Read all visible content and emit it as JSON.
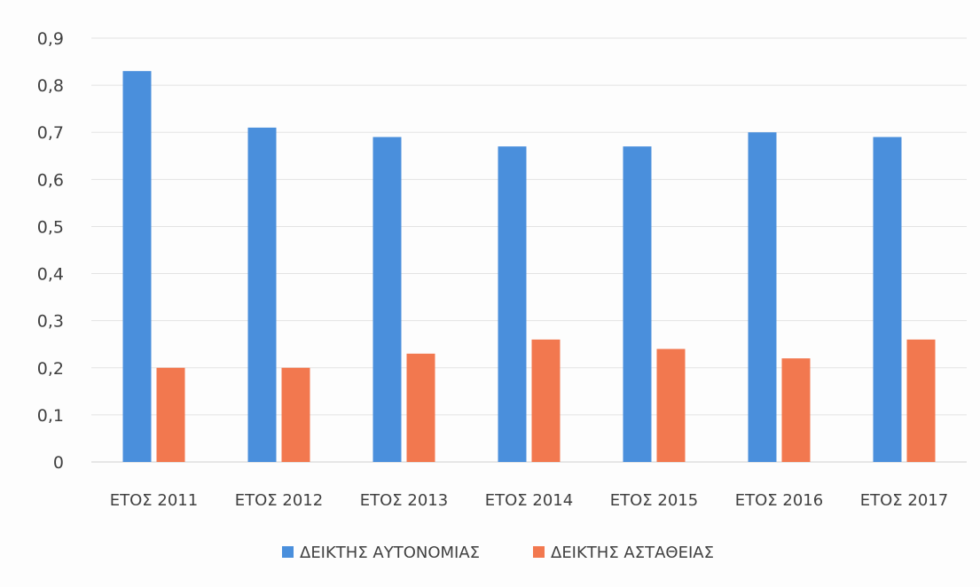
{
  "chart_data": {
    "type": "bar",
    "categories": [
      "ΕΤΟΣ 2011",
      "ΕΤΟΣ 2012",
      "ΕΤΟΣ 2013",
      "ΕΤΟΣ 2014",
      "ΕΤΟΣ 2015",
      "ΕΤΟΣ 2016",
      "ΕΤΟΣ 2017"
    ],
    "series": [
      {
        "name": "ΔΕΙΚΤΗΣ ΑΥΤΟΝΟΜΙΑΣ",
        "color": "#4a8fdc",
        "values": [
          0.83,
          0.71,
          0.69,
          0.67,
          0.67,
          0.7,
          0.69
        ]
      },
      {
        "name": "ΔΕΙΚΤΗΣ ΑΣΤΑΘΕΙΑΣ",
        "color": "#f2784f",
        "values": [
          0.2,
          0.2,
          0.23,
          0.26,
          0.24,
          0.22,
          0.26
        ]
      }
    ],
    "ylim": [
      0,
      0.9
    ],
    "yticks": [
      0,
      0.1,
      0.2,
      0.3,
      0.4,
      0.5,
      0.6,
      0.7,
      0.8,
      0.9
    ],
    "ytick_labels": [
      "0",
      "0,1",
      "0,2",
      "0,3",
      "0,4",
      "0,5",
      "0,6",
      "0,7",
      "0,8",
      "0,9"
    ],
    "grid": true,
    "legend_position": "bottom",
    "title": "",
    "xlabel": "",
    "ylabel": ""
  }
}
